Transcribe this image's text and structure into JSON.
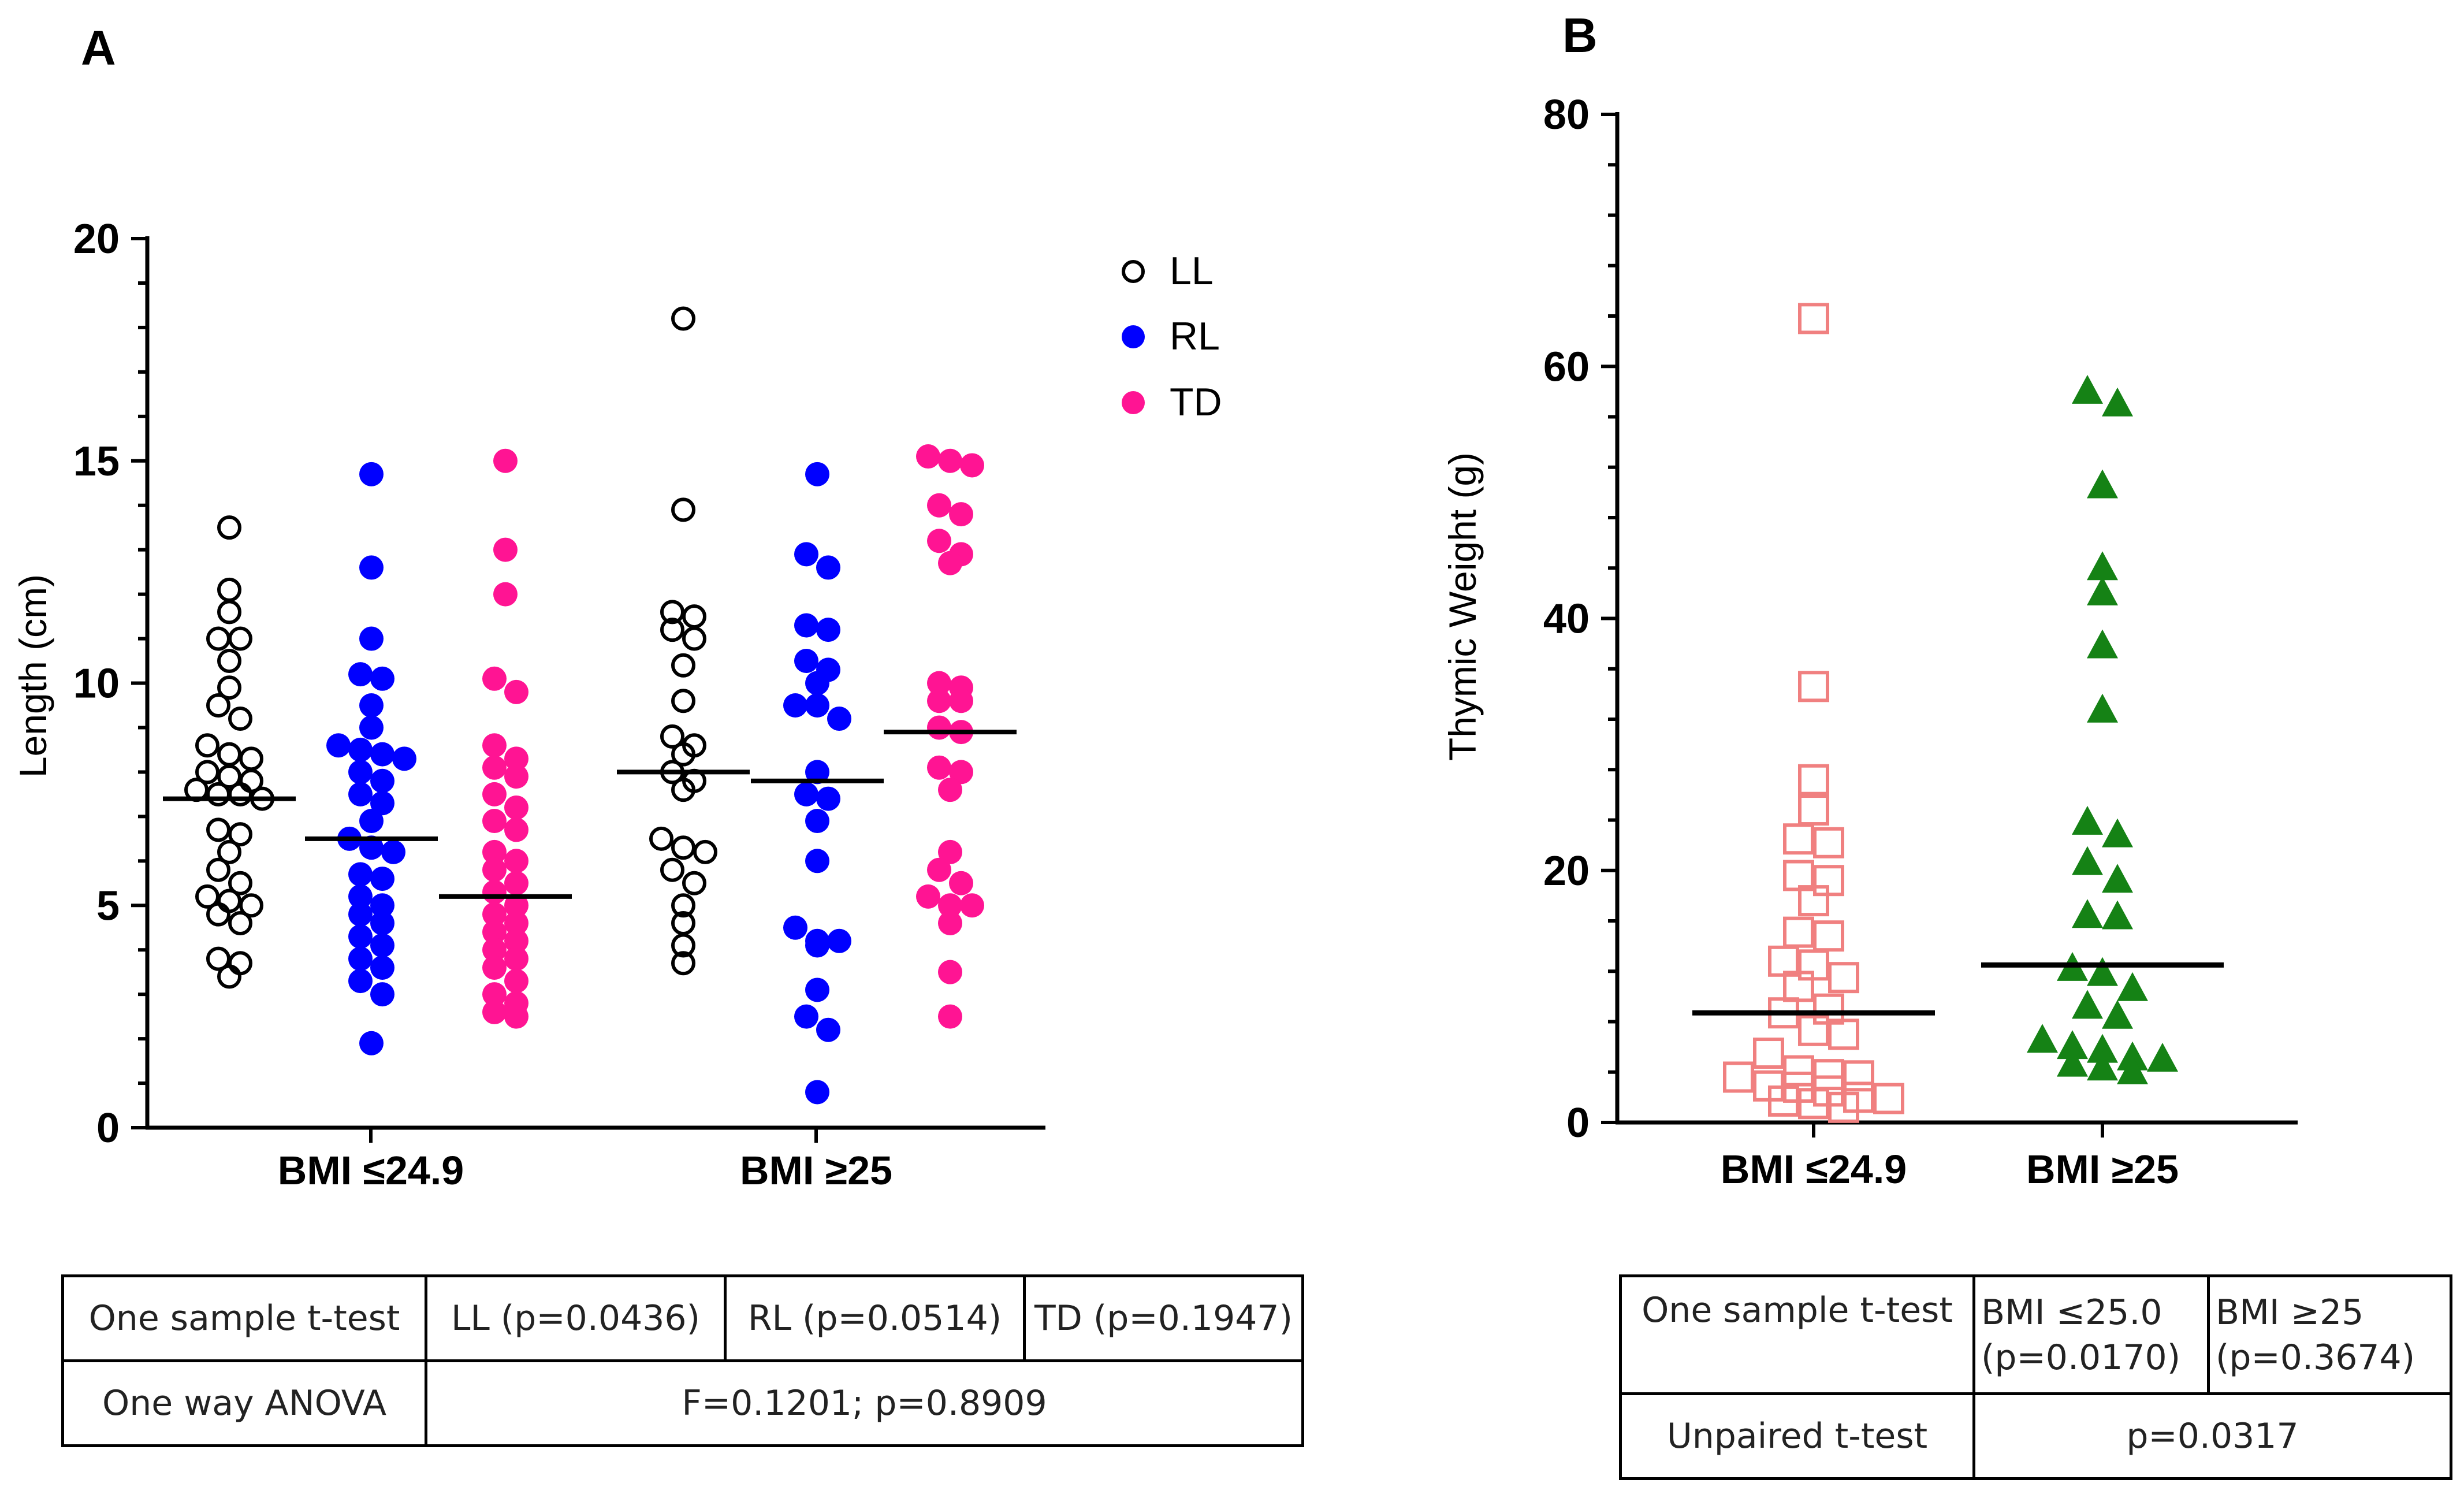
{
  "chart_data": [
    {
      "panel": "A",
      "type": "scatter",
      "ylabel": "Length (cm)",
      "ylim": [
        0,
        20
      ],
      "yticks": [
        0,
        5,
        10,
        15,
        20
      ],
      "categories": [
        "BMI ≤24.9",
        "BMI ≥25"
      ],
      "legend_position": "top-right",
      "series": [
        {
          "name": "LL",
          "marker": "circle-open",
          "color": "#000000",
          "groups": [
            {
              "category": "BMI ≤24.9",
              "mean": 7.4,
              "values": [
                13.5,
                12.1,
                11.6,
                11.0,
                11.0,
                10.5,
                9.9,
                9.5,
                9.2,
                8.6,
                8.4,
                8.3,
                8.0,
                7.9,
                7.8,
                7.6,
                7.5,
                7.5,
                7.4,
                6.7,
                6.6,
                6.2,
                5.8,
                5.5,
                5.2,
                5.1,
                5.0,
                4.8,
                4.6,
                3.8,
                3.7,
                3.4
              ]
            },
            {
              "category": "BMI ≥25",
              "mean": 8.0,
              "values": [
                18.2,
                13.9,
                11.6,
                11.5,
                11.2,
                11.0,
                10.4,
                9.6,
                8.8,
                8.6,
                8.4,
                8.0,
                7.8,
                7.6,
                6.5,
                6.3,
                6.2,
                5.8,
                5.5,
                5.0,
                4.6,
                4.1,
                3.7
              ]
            }
          ]
        },
        {
          "name": "RL",
          "marker": "circle-filled",
          "color": "#0000ff",
          "groups": [
            {
              "category": "BMI ≤24.9",
              "mean": 6.5,
              "values": [
                14.7,
                12.6,
                11.0,
                10.2,
                10.1,
                9.5,
                9.0,
                8.6,
                8.5,
                8.4,
                8.3,
                8.0,
                7.8,
                7.5,
                7.3,
                6.9,
                6.5,
                6.3,
                6.2,
                5.7,
                5.6,
                5.2,
                5.0,
                4.8,
                4.6,
                4.3,
                4.1,
                3.8,
                3.6,
                3.3,
                3.0,
                1.9
              ]
            },
            {
              "category": "BMI ≥25",
              "mean": 7.8,
              "values": [
                14.7,
                12.9,
                12.6,
                11.3,
                11.2,
                10.5,
                10.3,
                10.0,
                9.5,
                9.5,
                9.2,
                8.0,
                7.5,
                7.4,
                6.9,
                6.0,
                4.5,
                4.2,
                4.2,
                4.1,
                3.1,
                2.5,
                2.2,
                0.8
              ]
            }
          ]
        },
        {
          "name": "TD",
          "marker": "circle-filled",
          "color": "#ff1493",
          "groups": [
            {
              "category": "BMI ≤24.9",
              "mean": 5.2,
              "values": [
                15.0,
                13.0,
                12.0,
                10.1,
                9.8,
                8.6,
                8.3,
                8.1,
                7.9,
                7.5,
                7.2,
                6.9,
                6.7,
                6.2,
                6.0,
                5.8,
                5.5,
                5.3,
                5.0,
                4.8,
                4.6,
                4.4,
                4.2,
                4.0,
                3.8,
                3.6,
                3.3,
                3.0,
                2.8,
                2.6,
                2.5
              ]
            },
            {
              "category": "BMI ≥25",
              "mean": 8.9,
              "values": [
                15.1,
                15.0,
                14.9,
                14.0,
                13.8,
                13.2,
                12.9,
                12.7,
                10.0,
                9.9,
                9.6,
                9.6,
                9.0,
                8.9,
                8.1,
                8.0,
                7.6,
                6.2,
                5.8,
                5.5,
                5.2,
                5.0,
                5.0,
                4.6,
                3.5,
                2.5
              ]
            }
          ]
        }
      ]
    },
    {
      "panel": "B",
      "type": "scatter",
      "ylabel": "Thymic Weight (g)",
      "ylim": [
        0,
        80
      ],
      "yticks": [
        0,
        20,
        40,
        60,
        80
      ],
      "categories": [
        "BMI ≤24.9",
        "BMI ≥25"
      ],
      "series": [
        {
          "name": "BMI ≤24.9",
          "marker": "square-open",
          "color": "#f08080",
          "mean": 8.7,
          "values": [
            63.8,
            34.6,
            27.2,
            24.8,
            22.5,
            22.2,
            19.6,
            19.2,
            17.6,
            15.1,
            14.8,
            12.8,
            12.5,
            11.5,
            10.8,
            9.0,
            8.7,
            7.3,
            7.0,
            5.5,
            4.1,
            3.8,
            3.7,
            3.6,
            2.9,
            2.8,
            2.5,
            2.0,
            1.9,
            1.7,
            1.5,
            1.2
          ]
        },
        {
          "name": "BMI ≥25",
          "marker": "triangle-filled",
          "color": "#158215",
          "mean": 12.5,
          "values": [
            58.0,
            57.0,
            50.5,
            44.0,
            42.0,
            37.8,
            32.7,
            23.8,
            22.8,
            20.6,
            19.2,
            16.4,
            16.3,
            12.2,
            11.8,
            10.6,
            9.2,
            8.4,
            6.5,
            6.0,
            5.7,
            5.1,
            5.0,
            4.6,
            4.3,
            4.0
          ]
        }
      ]
    }
  ],
  "panelA": {
    "label": "A",
    "ylabel": "Length (cm)",
    "yticks": [
      "0",
      "5",
      "10",
      "15",
      "20"
    ],
    "xlabels": [
      "BMI ≤24.9",
      "BMI ≥25"
    ],
    "legend": [
      "LL",
      "RL",
      "TD"
    ]
  },
  "panelB": {
    "label": "B",
    "ylabel": "Thymic Weight (g)",
    "yticks": [
      "0",
      "20",
      "40",
      "60",
      "80"
    ],
    "xlabels": [
      "BMI ≤24.9",
      "BMI ≥25"
    ]
  },
  "tableA": {
    "row1_label": "One sample t-test",
    "row1_cells": [
      "LL (p=0.0436)",
      "RL (p=0.0514)",
      "TD (p=0.1947)"
    ],
    "row2_label": "One way ANOVA",
    "row2_value": "F=0.1201; p=0.8909"
  },
  "tableB": {
    "row1_label": "One sample t-test",
    "row1_cell1_line1": "BMI ≤25.0",
    "row1_cell1_line2": "(p=0.0170)",
    "row1_cell2_line1": "BMI ≥25",
    "row1_cell2_line2": "(p=0.3674)",
    "row2_label": "Unpaired t-test",
    "row2_value": "p=0.0317"
  },
  "colors": {
    "LL": "#000000",
    "RL": "#0000ff",
    "TD": "#ff1493",
    "thymus_low": "#f08080",
    "thymus_high": "#158215"
  }
}
